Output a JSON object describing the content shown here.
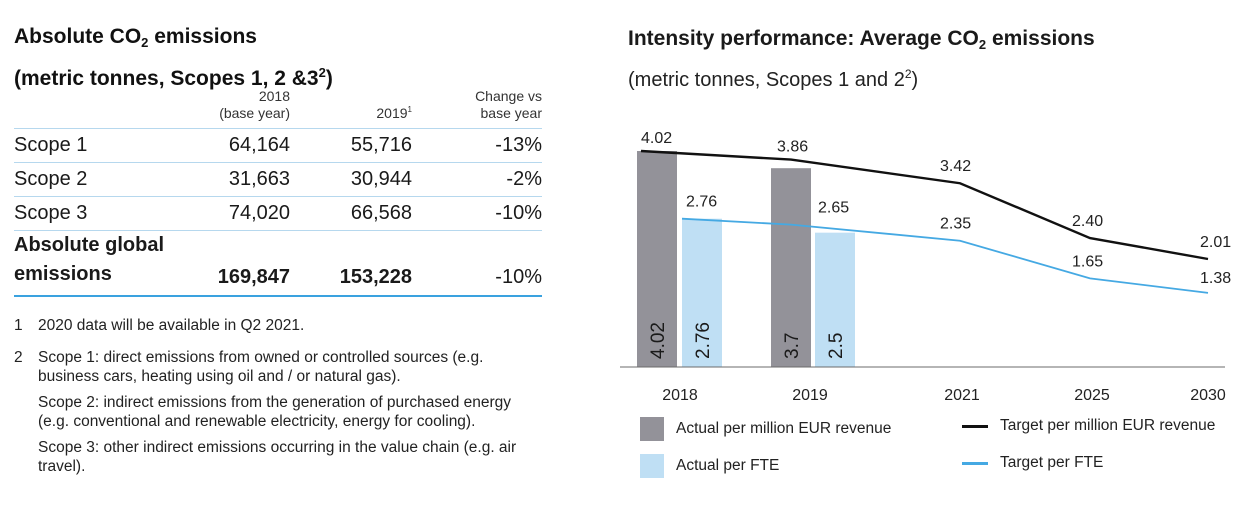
{
  "left": {
    "title_line1_pre": "Absolute CO",
    "title_line1_sub": "2",
    "title_line1_post": " emissions",
    "title_line2_pre": "(metric tonnes, Scopes 1, 2 &3",
    "title_line2_sup": "2",
    "title_line2_post": ")",
    "table": {
      "headers": {
        "col1_line1": "2018",
        "col1_line2": "(base year)",
        "col2": "2019",
        "col2_sup": "1",
        "col3_line1": "Change vs",
        "col3_line2": "base year"
      },
      "rows": [
        {
          "label": "Scope 1",
          "y2018": "64,164",
          "y2019": "55,716",
          "change": "-13%"
        },
        {
          "label": "Scope 2",
          "y2018": "31,663",
          "y2019": "30,944",
          "change": "-2%"
        },
        {
          "label": "Scope 3",
          "y2018": "74,020",
          "y2019": "66,568",
          "change": "-10%"
        }
      ],
      "total": {
        "label_line1": "Absolute global",
        "label_line2": "emissions",
        "y2018": "169,847",
        "y2019": "153,228",
        "change": "-10%"
      }
    },
    "footnotes": [
      {
        "num": "1",
        "paragraphs": [
          "2020 data will be available in Q2 2021."
        ]
      },
      {
        "num": "2",
        "paragraphs": [
          "Scope 1: direct emissions from owned or controlled sources (e.g. business cars, heating using oil and / or natural gas).",
          "Scope 2: indirect emissions from the generation of purchased energy (e.g. conventional and renewable electricity, energy for cooling).",
          "Scope 3: other indirect emissions occurring in the value chain (e.g. air travel)."
        ]
      }
    ]
  },
  "right": {
    "title_pre": "Intensity performance: Average CO",
    "title_sub": "2",
    "title_post": " emissions",
    "subtitle_pre": "(metric tonnes, Scopes 1 and 2",
    "subtitle_sup": "2",
    "subtitle_post": ")"
  },
  "colors": {
    "grey_bar": "#939299",
    "blue_bar": "#bfdff4",
    "black_line": "#111111",
    "blue_line": "#45a9e3",
    "rule": "#b6d8ee",
    "rule_strong": "#3aa2df"
  },
  "chart_data": {
    "type": "bar",
    "title": "Intensity performance: Average CO2 emissions",
    "subtitle": "(metric tonnes, Scopes 1 and 2)",
    "categories": [
      "2018",
      "2019",
      "2021",
      "2025",
      "2030"
    ],
    "ylim": [
      0,
      4.2
    ],
    "series": [
      {
        "name": "Actual per million EUR revenue",
        "kind": "bar",
        "values": [
          4.02,
          3.7,
          null,
          null,
          null
        ],
        "bar_labels": [
          "4.02",
          "3.7",
          null,
          null,
          null
        ]
      },
      {
        "name": "Actual per FTE",
        "kind": "bar",
        "values": [
          2.76,
          2.5,
          null,
          null,
          null
        ],
        "bar_labels": [
          "2.76",
          "2.5",
          null,
          null,
          null
        ]
      },
      {
        "name": "Target per million EUR revenue",
        "kind": "line",
        "values": [
          4.02,
          3.86,
          3.42,
          2.4,
          2.01
        ],
        "labels": [
          "4.02",
          "3.86",
          "3.42",
          "2.40",
          "2.01"
        ]
      },
      {
        "name": "Target per FTE",
        "kind": "line",
        "values": [
          2.76,
          2.65,
          2.35,
          1.65,
          1.38
        ],
        "labels": [
          "2.76",
          "2.65",
          "2.35",
          "1.65",
          "1.38"
        ]
      }
    ],
    "legend": [
      {
        "name": "Actual per million EUR revenue",
        "kind": "bar",
        "series": 0
      },
      {
        "name": "Target per million EUR revenue",
        "kind": "line",
        "series": 2
      },
      {
        "name": "Actual per FTE",
        "kind": "bar",
        "series": 1
      },
      {
        "name": "Target per FTE",
        "kind": "line",
        "series": 3
      }
    ]
  }
}
